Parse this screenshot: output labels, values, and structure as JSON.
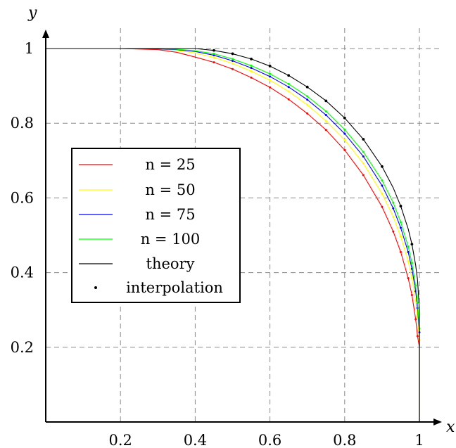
{
  "chart_data": {
    "type": "line",
    "xlabel": "x",
    "ylabel": "y",
    "xlim": [
      0,
      1
    ],
    "ylim": [
      0,
      1
    ],
    "xticks": [
      "0.2",
      "0.4",
      "0.6",
      "0.8",
      "1"
    ],
    "yticks": [
      "0.2",
      "0.4",
      "0.6",
      "0.8",
      "1"
    ],
    "xtick_values": [
      0.2,
      0.4,
      0.6,
      0.8,
      1
    ],
    "ytick_values": [
      0.2,
      0.4,
      0.6,
      0.8,
      1
    ],
    "grid": true,
    "legend_position": "left",
    "series": [
      {
        "name": "n = 25",
        "color": "#ff0000",
        "marker": "dot",
        "points": [
          [
            0,
            1
          ],
          [
            0.2,
            1
          ],
          [
            0.3,
            0.997
          ],
          [
            0.35,
            0.99
          ],
          [
            0.4,
            0.977
          ],
          [
            0.45,
            0.963
          ],
          [
            0.5,
            0.945
          ],
          [
            0.55,
            0.922
          ],
          [
            0.6,
            0.896
          ],
          [
            0.65,
            0.864
          ],
          [
            0.7,
            0.826
          ],
          [
            0.75,
            0.782
          ],
          [
            0.8,
            0.728
          ],
          [
            0.85,
            0.661
          ],
          [
            0.9,
            0.576
          ],
          [
            0.93,
            0.51
          ],
          [
            0.95,
            0.455
          ],
          [
            0.97,
            0.385
          ],
          [
            0.98,
            0.34
          ],
          [
            0.99,
            0.275
          ],
          [
            0.995,
            0.23
          ],
          [
            1,
            0.2
          ],
          [
            1,
            0
          ]
        ]
      },
      {
        "name": "n = 50",
        "color": "#ffff00",
        "marker": "dot",
        "points": [
          [
            0,
            1
          ],
          [
            0.2,
            1
          ],
          [
            0.3,
            0.999
          ],
          [
            0.35,
            0.995
          ],
          [
            0.4,
            0.988
          ],
          [
            0.45,
            0.976
          ],
          [
            0.5,
            0.96
          ],
          [
            0.55,
            0.939
          ],
          [
            0.6,
            0.915
          ],
          [
            0.65,
            0.885
          ],
          [
            0.7,
            0.849
          ],
          [
            0.75,
            0.806
          ],
          [
            0.8,
            0.755
          ],
          [
            0.85,
            0.692
          ],
          [
            0.9,
            0.611
          ],
          [
            0.93,
            0.549
          ],
          [
            0.95,
            0.496
          ],
          [
            0.97,
            0.43
          ],
          [
            0.98,
            0.385
          ],
          [
            0.99,
            0.325
          ],
          [
            0.995,
            0.28
          ],
          [
            1,
            0.22
          ],
          [
            1,
            0
          ]
        ]
      },
      {
        "name": "n = 75",
        "color": "#0000ff",
        "marker": "dot",
        "points": [
          [
            0,
            1
          ],
          [
            0.2,
            1
          ],
          [
            0.3,
            0.999
          ],
          [
            0.35,
            0.997
          ],
          [
            0.4,
            0.992
          ],
          [
            0.45,
            0.982
          ],
          [
            0.5,
            0.967
          ],
          [
            0.55,
            0.948
          ],
          [
            0.6,
            0.925
          ],
          [
            0.65,
            0.897
          ],
          [
            0.7,
            0.863
          ],
          [
            0.75,
            0.822
          ],
          [
            0.8,
            0.772
          ],
          [
            0.85,
            0.711
          ],
          [
            0.9,
            0.633
          ],
          [
            0.93,
            0.572
          ],
          [
            0.95,
            0.52
          ],
          [
            0.97,
            0.455
          ],
          [
            0.98,
            0.41
          ],
          [
            0.99,
            0.35
          ],
          [
            0.995,
            0.305
          ],
          [
            1,
            0.24
          ],
          [
            1,
            0
          ]
        ]
      },
      {
        "name": "n = 100",
        "color": "#00ff00",
        "marker": "dot",
        "points": [
          [
            0,
            1
          ],
          [
            0.2,
            1
          ],
          [
            0.3,
            1
          ],
          [
            0.35,
            0.998
          ],
          [
            0.4,
            0.994
          ],
          [
            0.45,
            0.986
          ],
          [
            0.5,
            0.972
          ],
          [
            0.55,
            0.954
          ],
          [
            0.6,
            0.932
          ],
          [
            0.65,
            0.905
          ],
          [
            0.7,
            0.872
          ],
          [
            0.75,
            0.832
          ],
          [
            0.8,
            0.783
          ],
          [
            0.85,
            0.723
          ],
          [
            0.9,
            0.647
          ],
          [
            0.93,
            0.587
          ],
          [
            0.95,
            0.535
          ],
          [
            0.97,
            0.47
          ],
          [
            0.98,
            0.426
          ],
          [
            0.99,
            0.365
          ],
          [
            0.995,
            0.32
          ],
          [
            1,
            0.25
          ],
          [
            1,
            0
          ]
        ]
      },
      {
        "name": "theory",
        "color": "#000000",
        "marker": "none",
        "points": [
          [
            0,
            1
          ],
          [
            0.4,
            1
          ],
          [
            0.45,
            0.995
          ],
          [
            0.5,
            0.986
          ],
          [
            0.55,
            0.972
          ],
          [
            0.6,
            0.953
          ],
          [
            0.65,
            0.928
          ],
          [
            0.7,
            0.897
          ],
          [
            0.75,
            0.86
          ],
          [
            0.8,
            0.814
          ],
          [
            0.85,
            0.757
          ],
          [
            0.9,
            0.684
          ],
          [
            0.93,
            0.627
          ],
          [
            0.95,
            0.578
          ],
          [
            0.97,
            0.517
          ],
          [
            0.98,
            0.476
          ],
          [
            0.99,
            0.42
          ],
          [
            0.995,
            0.38
          ],
          [
            1,
            0.3
          ],
          [
            1,
            0
          ]
        ]
      },
      {
        "name": "interpolation",
        "color": "#000000",
        "marker": "dot-only",
        "points": [
          [
            0.45,
            0.995
          ],
          [
            0.5,
            0.986
          ],
          [
            0.55,
            0.972
          ],
          [
            0.6,
            0.953
          ],
          [
            0.65,
            0.928
          ],
          [
            0.7,
            0.897
          ],
          [
            0.75,
            0.86
          ],
          [
            0.8,
            0.814
          ],
          [
            0.85,
            0.757
          ],
          [
            0.9,
            0.684
          ],
          [
            0.95,
            0.578
          ],
          [
            0.98,
            0.476
          ]
        ]
      }
    ]
  },
  "legend_labels": {
    "n25": "n = 25",
    "n50": "n = 50",
    "n75": "n = 75",
    "n100": "n = 100",
    "theory": "theory",
    "interpolation": "interpolation"
  }
}
